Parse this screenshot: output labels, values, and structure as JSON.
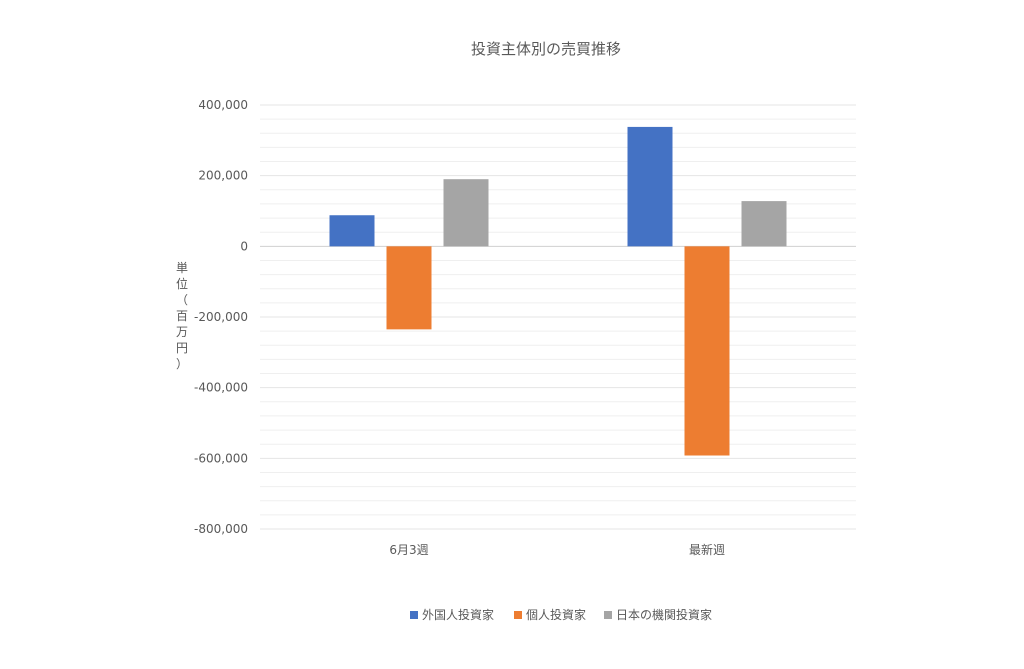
{
  "chart_data": {
    "type": "bar",
    "title": "投資主体別の売買推移",
    "ylabel": "単位（百万円）",
    "categories": [
      "6月3週",
      "最新週"
    ],
    "series": [
      {
        "name": "外国人投資家",
        "values": [
          88000,
          338000
        ],
        "color": "#4472C4"
      },
      {
        "name": "個人投資家",
        "values": [
          -235000,
          -592000
        ],
        "color": "#ED7D31"
      },
      {
        "name": "日本の機関投資家",
        "values": [
          190000,
          128000
        ],
        "color": "#A5A5A5"
      }
    ],
    "ylim": [
      -800000,
      400000
    ],
    "yticks": [
      "400,000",
      "200,000",
      "0",
      "-200,000",
      "-400,000",
      "-600,000",
      "-800,000"
    ],
    "ytick_values": [
      400000,
      200000,
      0,
      -200000,
      -400000,
      -600000,
      -800000
    ],
    "minor_gridlines": true,
    "legend_position": "bottom"
  }
}
